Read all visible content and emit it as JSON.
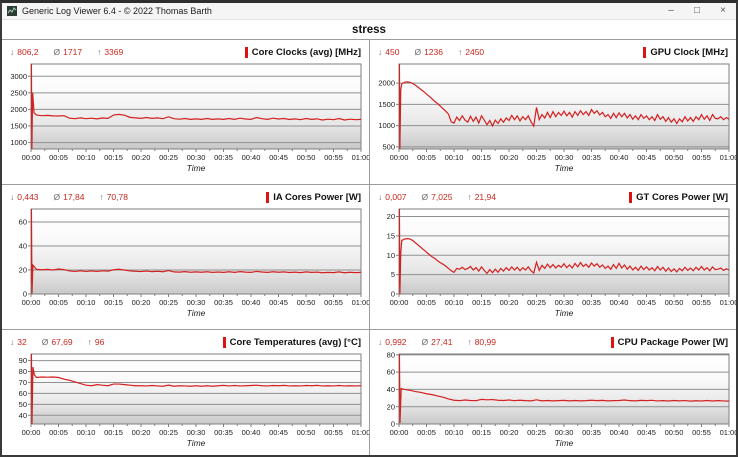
{
  "window": {
    "title": "Generic Log Viewer 6.4 - © 2022 Thomas Barth",
    "controls": {
      "minimize": "–",
      "maximize": "□",
      "close": "×"
    }
  },
  "page": {
    "title": "stress"
  },
  "stats_symbols": {
    "min": "↓",
    "avg": "Ø",
    "max": "↑"
  },
  "colors": {
    "series": "#d42020",
    "title_mark": "#dd1414",
    "stats_value": "#c8281e",
    "grid_line": "#8f8f8f",
    "plot_border": "#7f7f7f",
    "tick_text": "#1c1c1c"
  },
  "axis": {
    "x_label": "Time",
    "x_ticks": [
      "00:00",
      "00:05",
      "00:10",
      "00:15",
      "00:20",
      "00:25",
      "00:30",
      "00:35",
      "00:40",
      "00:45",
      "00:50",
      "00:55",
      "01:00"
    ],
    "x_tick_minutes": [
      0,
      5,
      10,
      15,
      20,
      25,
      30,
      35,
      40,
      45,
      50,
      55,
      60
    ],
    "x_range_minutes": [
      0,
      60
    ]
  },
  "chart_data": [
    {
      "type": "line",
      "title": "Core Clocks (avg) [MHz]",
      "stats": {
        "min": "806,2",
        "avg": "1717",
        "max": "3369"
      },
      "y_ticks": [
        1000,
        1500,
        2000,
        2500,
        3000
      ],
      "ylim": [
        806,
        3369
      ],
      "spike": [
        [
          0,
          1550
        ],
        [
          0.08,
          3369
        ],
        [
          0.16,
          806
        ],
        [
          0.3,
          2500
        ],
        [
          0.55,
          1900
        ]
      ],
      "t0": 1,
      "dt": 1,
      "values": [
        1830,
        1810,
        1820,
        1805,
        1800,
        1810,
        1735,
        1720,
        1745,
        1720,
        1735,
        1715,
        1740,
        1730,
        1830,
        1850,
        1825,
        1760,
        1745,
        1730,
        1755,
        1730,
        1745,
        1720,
        1775,
        1720,
        1705,
        1725,
        1700,
        1715,
        1700,
        1725,
        1700,
        1715,
        1700,
        1725,
        1700,
        1735,
        1710,
        1700,
        1755,
        1720,
        1700,
        1735,
        1710,
        1725,
        1695,
        1715,
        1690,
        1725,
        1700,
        1715,
        1680,
        1705,
        1690,
        1725,
        1680,
        1705,
        1690,
        1700
      ]
    },
    {
      "type": "line",
      "title": "GPU Clock [MHz]",
      "stats": {
        "min": "450",
        "avg": "1236",
        "max": "2450"
      },
      "y_ticks": [
        500,
        1000,
        1500,
        2000
      ],
      "ylim": [
        450,
        2450
      ],
      "spike": [
        [
          0,
          1100
        ],
        [
          0.08,
          2450
        ],
        [
          0.16,
          450
        ],
        [
          0.32,
          1850
        ]
      ],
      "t0": 0.5,
      "dt": 0.5,
      "values": [
        1980,
        2020,
        2030,
        2020,
        1990,
        1950,
        1900,
        1850,
        1800,
        1740,
        1690,
        1630,
        1570,
        1520,
        1460,
        1400,
        1340,
        1270,
        1090,
        1060,
        1200,
        1120,
        1230,
        1130,
        1080,
        1220,
        1100,
        1200,
        1060,
        1230,
        1130,
        1020,
        1120,
        990,
        1130,
        1050,
        1160,
        1080,
        1180,
        1120,
        1240,
        1140,
        1230,
        1110,
        1210,
        1140,
        1230,
        1090,
        990,
        1430,
        1140,
        1260,
        1180,
        1310,
        1190,
        1330,
        1210,
        1310,
        1240,
        1340,
        1230,
        1310,
        1200,
        1330,
        1240,
        1350,
        1260,
        1330,
        1240,
        1380,
        1290,
        1350,
        1250,
        1310,
        1210,
        1260,
        1170,
        1290,
        1190,
        1300,
        1210,
        1290,
        1180,
        1260,
        1150,
        1230,
        1140,
        1260,
        1170,
        1230,
        1140,
        1210,
        1120,
        1260,
        1150,
        1210,
        1100,
        1190,
        1080,
        1160,
        1050,
        1160,
        1090,
        1210,
        1110,
        1190,
        1100,
        1210,
        1140,
        1260,
        1150,
        1230,
        1120,
        1260,
        1170,
        1160,
        1210,
        1140,
        1190,
        1150
      ]
    },
    {
      "type": "line",
      "title": "IA Cores Power [W]",
      "stats": {
        "min": "0,443",
        "avg": "17,84",
        "max": "70,78"
      },
      "y_ticks": [
        0,
        20,
        40,
        60
      ],
      "ylim": [
        0,
        70.78
      ],
      "spike": [
        [
          0,
          10
        ],
        [
          0.08,
          70.78
        ],
        [
          0.18,
          0.443
        ],
        [
          0.35,
          24
        ]
      ],
      "t0": 1,
      "dt": 1,
      "values": [
        20.5,
        20.2,
        20.5,
        20.0,
        20.8,
        20.3,
        19.2,
        18.8,
        19.3,
        18.8,
        19.2,
        18.8,
        19.3,
        19.0,
        20.2,
        20.6,
        20.0,
        19.2,
        18.9,
        18.7,
        19.1,
        18.6,
        18.9,
        18.5,
        19.5,
        18.4,
        18.2,
        18.6,
        18.1,
        18.4,
        18.1,
        18.5,
        18.0,
        18.3,
        18.0,
        18.5,
        18.0,
        18.6,
        18.2,
        18.0,
        18.8,
        18.3,
        18.0,
        18.5,
        18.1,
        18.4,
        17.9,
        18.2,
        17.8,
        18.4,
        18.0,
        18.2,
        17.7,
        18.0,
        17.8,
        18.4,
        17.7,
        18.1,
        17.8,
        18.0
      ]
    },
    {
      "type": "line",
      "title": "GT Cores Power [W]",
      "stats": {
        "min": "0,007",
        "avg": "7,025",
        "max": "21,94"
      },
      "y_ticks": [
        0,
        5,
        10,
        15,
        20
      ],
      "ylim": [
        0,
        21.94
      ],
      "spike": [
        [
          0,
          2
        ],
        [
          0.08,
          21.94
        ],
        [
          0.16,
          0.007
        ],
        [
          0.32,
          10.5
        ]
      ],
      "t0": 0.5,
      "dt": 0.5,
      "values": [
        13.8,
        14.2,
        14.3,
        14.2,
        13.8,
        13.2,
        12.6,
        12.0,
        11.4,
        10.8,
        10.2,
        9.6,
        9.2,
        8.6,
        8.1,
        7.7,
        7.2,
        6.6,
        6.0,
        5.6,
        6.6,
        6.4,
        6.9,
        6.3,
        6.6,
        7.1,
        6.2,
        6.8,
        5.9,
        7.0,
        6.1,
        5.3,
        6.3,
        5.5,
        6.4,
        5.6,
        6.6,
        5.9,
        6.8,
        6.1,
        7.0,
        6.2,
        6.9,
        6.0,
        6.8,
        6.2,
        7.0,
        6.0,
        5.4,
        8.2,
        6.1,
        7.4,
        6.6,
        7.7,
        6.8,
        7.6,
        6.7,
        7.4,
        6.9,
        7.8,
        6.8,
        7.5,
        6.7,
        7.9,
        7.0,
        8.1,
        7.1,
        7.7,
        6.9,
        8.0,
        7.2,
        7.8,
        6.9,
        7.5,
        6.6,
        7.2,
        6.4,
        7.6,
        6.6,
        7.9,
        6.7,
        7.5,
        6.4,
        7.2,
        6.2,
        6.9,
        6.1,
        7.2,
        6.3,
        7.0,
        6.2,
        6.8,
        6.0,
        7.1,
        6.2,
        6.9,
        5.9,
        6.7,
        5.8,
        6.5,
        5.7,
        6.6,
        6.0,
        6.9,
        6.1,
        6.7,
        6.0,
        6.9,
        6.2,
        7.1,
        6.2,
        6.8,
        6.0,
        7.0,
        6.3,
        6.4,
        6.7,
        6.1,
        6.5,
        6.2
      ]
    },
    {
      "type": "line",
      "title": "Core Temperatures (avg) [°C]",
      "stats": {
        "min": "32",
        "avg": "67,69",
        "max": "96"
      },
      "y_ticks": [
        40,
        50,
        60,
        70,
        80,
        90
      ],
      "ylim": [
        32,
        96
      ],
      "spike": [
        [
          0,
          60
        ],
        [
          0.08,
          96
        ],
        [
          0.18,
          32
        ],
        [
          0.35,
          84
        ],
        [
          0.6,
          77
        ]
      ],
      "t0": 1,
      "dt": 1,
      "values": [
        74.5,
        75.0,
        74.8,
        75.0,
        74.5,
        73.0,
        72.0,
        70.5,
        69.0,
        67.5,
        67.0,
        68.0,
        67.5,
        67.0,
        68.5,
        68.5,
        68.0,
        67.5,
        67.0,
        67.0,
        66.8,
        67.2,
        66.8,
        66.5,
        67.5,
        66.5,
        67.0,
        66.8,
        66.5,
        67.0,
        66.5,
        67.0,
        66.5,
        67.0,
        67.3,
        66.8,
        67.2,
        66.8,
        67.0,
        67.2,
        67.5,
        67.0,
        66.8,
        67.2,
        67.0,
        67.3,
        66.8,
        67.0,
        66.8,
        67.2,
        67.0,
        67.3,
        66.8,
        67.0,
        66.8,
        67.2,
        66.8,
        67.0,
        66.8,
        67.0
      ]
    },
    {
      "type": "line",
      "title": "CPU Package Power [W]",
      "stats": {
        "min": "0,992",
        "avg": "27,41",
        "max": "80,99"
      },
      "y_ticks": [
        0,
        20,
        40,
        60,
        80
      ],
      "ylim": [
        0,
        80.99
      ],
      "spike": [
        [
          0,
          30
        ],
        [
          0.08,
          80.99
        ],
        [
          0.18,
          0.992
        ],
        [
          0.4,
          41
        ]
      ],
      "t0": 1,
      "dt": 1,
      "values": [
        40.0,
        39.0,
        37.5,
        36.5,
        35.0,
        34.0,
        32.5,
        31.0,
        29.0,
        27.5,
        27.0,
        27.8,
        27.2,
        27.0,
        28.5,
        28.0,
        28.3,
        27.5,
        27.2,
        27.8,
        27.0,
        27.5,
        27.0,
        26.8,
        28.0,
        26.8,
        27.2,
        26.8,
        27.0,
        27.3,
        26.8,
        27.2,
        26.8,
        27.0,
        27.5,
        27.0,
        27.3,
        26.8,
        27.0,
        27.2,
        27.8,
        27.0,
        26.8,
        27.3,
        27.0,
        27.4,
        26.7,
        27.0,
        26.6,
        27.2,
        26.8,
        27.1,
        26.5,
        26.9,
        26.6,
        27.2,
        26.6,
        27.0,
        26.7,
        26.5
      ]
    }
  ]
}
